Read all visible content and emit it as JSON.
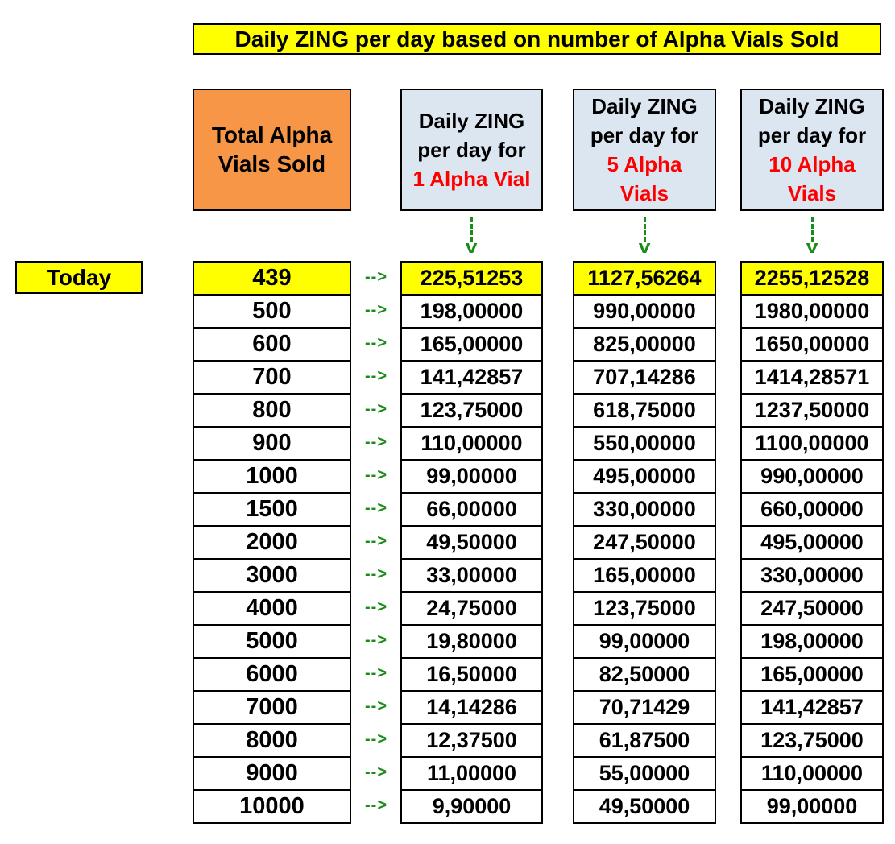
{
  "title": "Daily ZING per day based on number of Alpha Vials Sold",
  "headers": {
    "total": [
      "Total Alpha",
      "Vials Sold"
    ],
    "col1": {
      "lines": [
        "Daily ZING",
        "per day for"
      ],
      "highlight": [
        "1 Alpha Vial"
      ]
    },
    "col2": {
      "lines": [
        "Daily ZING",
        "per day for"
      ],
      "highlight": [
        "5 Alpha",
        "Vials"
      ]
    },
    "col3": {
      "lines": [
        "Daily ZING",
        "per day for"
      ],
      "highlight": [
        "10 Alpha",
        "Vials"
      ]
    }
  },
  "today_label": "Today",
  "arrow_text": "-->",
  "colors": {
    "title_bg": "#ffff00",
    "total_header_bg": "#f79646",
    "col_header_bg": "#dce6f1",
    "highlight_text": "#ff0000",
    "arrow": "#1a8c1a"
  },
  "rows": [
    {
      "total": "439",
      "v1": "225,51253",
      "v5": "1127,56264",
      "v10": "2255,12528",
      "today": true
    },
    {
      "total": "500",
      "v1": "198,00000",
      "v5": "990,00000",
      "v10": "1980,00000"
    },
    {
      "total": "600",
      "v1": "165,00000",
      "v5": "825,00000",
      "v10": "1650,00000"
    },
    {
      "total": "700",
      "v1": "141,42857",
      "v5": "707,14286",
      "v10": "1414,28571"
    },
    {
      "total": "800",
      "v1": "123,75000",
      "v5": "618,75000",
      "v10": "1237,50000"
    },
    {
      "total": "900",
      "v1": "110,00000",
      "v5": "550,00000",
      "v10": "1100,00000"
    },
    {
      "total": "1000",
      "v1": "99,00000",
      "v5": "495,00000",
      "v10": "990,00000"
    },
    {
      "total": "1500",
      "v1": "66,00000",
      "v5": "330,00000",
      "v10": "660,00000"
    },
    {
      "total": "2000",
      "v1": "49,50000",
      "v5": "247,50000",
      "v10": "495,00000"
    },
    {
      "total": "3000",
      "v1": "33,00000",
      "v5": "165,00000",
      "v10": "330,00000"
    },
    {
      "total": "4000",
      "v1": "24,75000",
      "v5": "123,75000",
      "v10": "247,50000"
    },
    {
      "total": "5000",
      "v1": "19,80000",
      "v5": "99,00000",
      "v10": "198,00000"
    },
    {
      "total": "6000",
      "v1": "16,50000",
      "v5": "82,50000",
      "v10": "165,00000"
    },
    {
      "total": "7000",
      "v1": "14,14286",
      "v5": "70,71429",
      "v10": "141,42857"
    },
    {
      "total": "8000",
      "v1": "12,37500",
      "v5": "61,87500",
      "v10": "123,75000"
    },
    {
      "total": "9000",
      "v1": "11,00000",
      "v5": "55,00000",
      "v10": "110,00000"
    },
    {
      "total": "10000",
      "v1": "9,90000",
      "v5": "49,50000",
      "v10": "99,00000"
    }
  ]
}
